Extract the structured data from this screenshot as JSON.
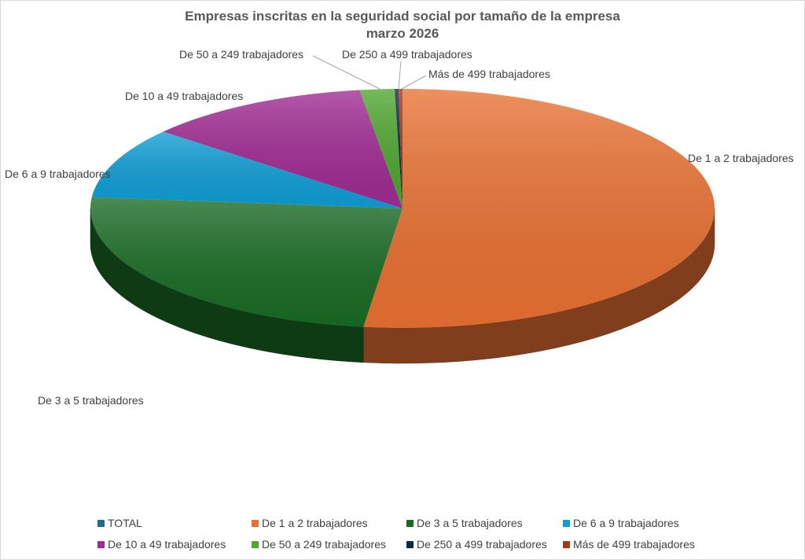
{
  "chart_data": {
    "type": "pie",
    "title": "Empresas inscritas en la seguridad social por tamaño de la empresa",
    "subtitle": "marzo 2026",
    "legend_position": "bottom",
    "three_d": true,
    "categories": [
      "TOTAL",
      "De 1 a 2 trabajadores",
      "De 3 a 5 trabajadores",
      "De 6 a 9 trabajadores",
      "De 10 a 49 trabajadores",
      "De  50 a 249 trabajadores",
      "De 250 a 499 trabajadores",
      "Más de 499 trabajadores"
    ],
    "values": [
      0,
      52.0,
      24.5,
      9.6,
      11.7,
      1.8,
      0.2,
      0.2
    ],
    "colors": [
      "#1f6e8c",
      "#e97132",
      "#196b24",
      "#0f9ed5",
      "#a02b93",
      "#4ea72e",
      "#0e2841",
      "#a0371a"
    ]
  }
}
